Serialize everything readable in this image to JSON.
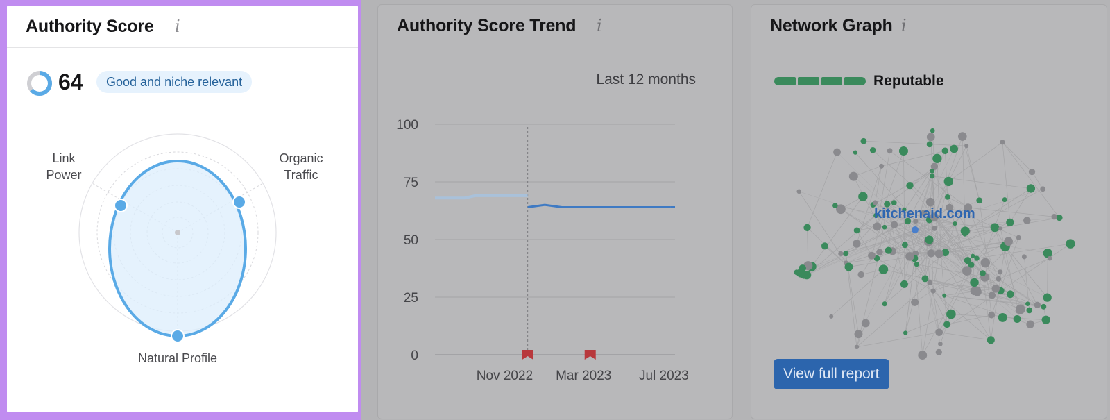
{
  "authority_card": {
    "title": "Authority Score",
    "info_icon": "i",
    "score": "64",
    "score_fraction": 0.64,
    "badge": "Good and niche relevant",
    "radar_labels": {
      "link_power_line1": "Link",
      "link_power_line2": "Power",
      "organic_traffic_line1": "Organic",
      "organic_traffic_line2": "Traffic",
      "natural_profile": "Natural Profile"
    },
    "colors": {
      "accent": "#5aaae6",
      "fill": "#dcedfc",
      "badge_bg": "#e6f2fd",
      "badge_text": "#25629a"
    }
  },
  "trend_card": {
    "title": "Authority Score Trend",
    "info_icon": "i",
    "period": "Last 12 months"
  },
  "chart_data": {
    "type": "line",
    "title": "Authority Score Trend",
    "xlabel": "",
    "ylabel": "",
    "ylim": [
      0,
      100
    ],
    "yticks": [
      0,
      25,
      50,
      75,
      100
    ],
    "xticks": [
      "Nov 2022",
      "Mar 2023",
      "Jul 2023"
    ],
    "x_range": [
      "2022-08-01",
      "2023-08-01"
    ],
    "grid": true,
    "marker_line": "2022-12-20",
    "flags": [
      "2022-12-20",
      "2023-03-25"
    ],
    "series": [
      {
        "style": "faded",
        "points": [
          [
            "2022-08-01",
            68
          ],
          [
            "2022-09-15",
            68
          ],
          [
            "2022-10-01",
            69
          ],
          [
            "2022-12-20",
            69
          ]
        ]
      },
      {
        "style": "solid",
        "points": [
          [
            "2022-12-20",
            64
          ],
          [
            "2023-01-15",
            65
          ],
          [
            "2023-02-10",
            64
          ],
          [
            "2023-07-25",
            64
          ]
        ]
      },
      {
        "style": "dashed",
        "points": [
          [
            "2023-07-25",
            64
          ],
          [
            "2023-08-01",
            64
          ]
        ]
      }
    ]
  },
  "network_card": {
    "title": "Network Graph",
    "info_icon": "i",
    "reputation": "Reputable",
    "reputation_segments": 4,
    "domain": "kitchenaid.com",
    "button": "View full report",
    "colors": {
      "green": "#3a8a5c",
      "gray": "#8a8a8e",
      "edge": "#a4a4a6"
    }
  }
}
